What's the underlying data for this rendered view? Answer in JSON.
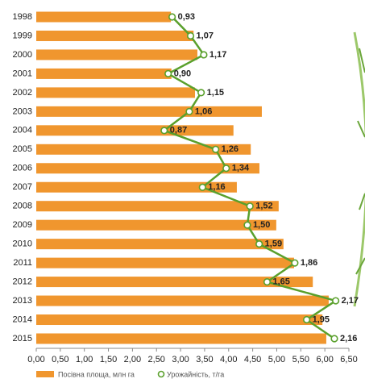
{
  "chart_data": {
    "type": "bar-line",
    "categories": [
      "1998",
      "1999",
      "2000",
      "2001",
      "2002",
      "2003",
      "2004",
      "2005",
      "2006",
      "2007",
      "2008",
      "2009",
      "2010",
      "2011",
      "2012",
      "2013",
      "2014",
      "2015"
    ],
    "series": [
      {
        "name": "Посівна площа, млн га",
        "color": "#f0962e",
        "type": "bar",
        "values": [
          2.8,
          3.27,
          3.35,
          2.81,
          3.3,
          4.69,
          4.1,
          4.46,
          4.64,
          4.17,
          5.04,
          4.99,
          5.14,
          5.36,
          5.75,
          6.08,
          5.95,
          6.03
        ]
      },
      {
        "name": "Урожайність, т/га",
        "color": "#5aa02c",
        "type": "line",
        "axis": "x2",
        "values": [
          0.93,
          1.07,
          1.17,
          0.9,
          1.15,
          1.06,
          0.87,
          1.26,
          1.34,
          1.16,
          1.52,
          1.5,
          1.59,
          1.86,
          1.65,
          2.17,
          1.95,
          2.16
        ],
        "value_labels": [
          "0,93",
          "1,07",
          "1,17",
          "0,90",
          "1,15",
          "1,06",
          "0,87",
          "1,26",
          "1,34",
          "1,16",
          "1,52",
          "1,50",
          "1,59",
          "1,86",
          "1,65",
          "2,17",
          "1,95",
          "2,16"
        ]
      }
    ],
    "xlim": [
      0,
      6.5
    ],
    "xticks": [
      {
        "value": 0,
        "label": "0,00"
      },
      {
        "value": 0.5,
        "label": "0,50"
      },
      {
        "value": 1,
        "label": "1,00"
      },
      {
        "value": 1.5,
        "label": "1,50"
      },
      {
        "value": 2,
        "label": "2,00"
      },
      {
        "value": 2.5,
        "label": "2,50"
      },
      {
        "value": 3,
        "label": "3,00"
      },
      {
        "value": 3.5,
        "label": "3,50"
      },
      {
        "value": 4,
        "label": "4,00"
      },
      {
        "value": 4.5,
        "label": "4,50"
      },
      {
        "value": 5,
        "label": "5,00"
      },
      {
        "value": 5.5,
        "label": "5,50"
      },
      {
        "value": 6,
        "label": "6,00"
      },
      {
        "value": 6.5,
        "label": "6,50"
      }
    ],
    "x2lim": [
      -0.1,
      2.27
    ],
    "grid": false
  }
}
